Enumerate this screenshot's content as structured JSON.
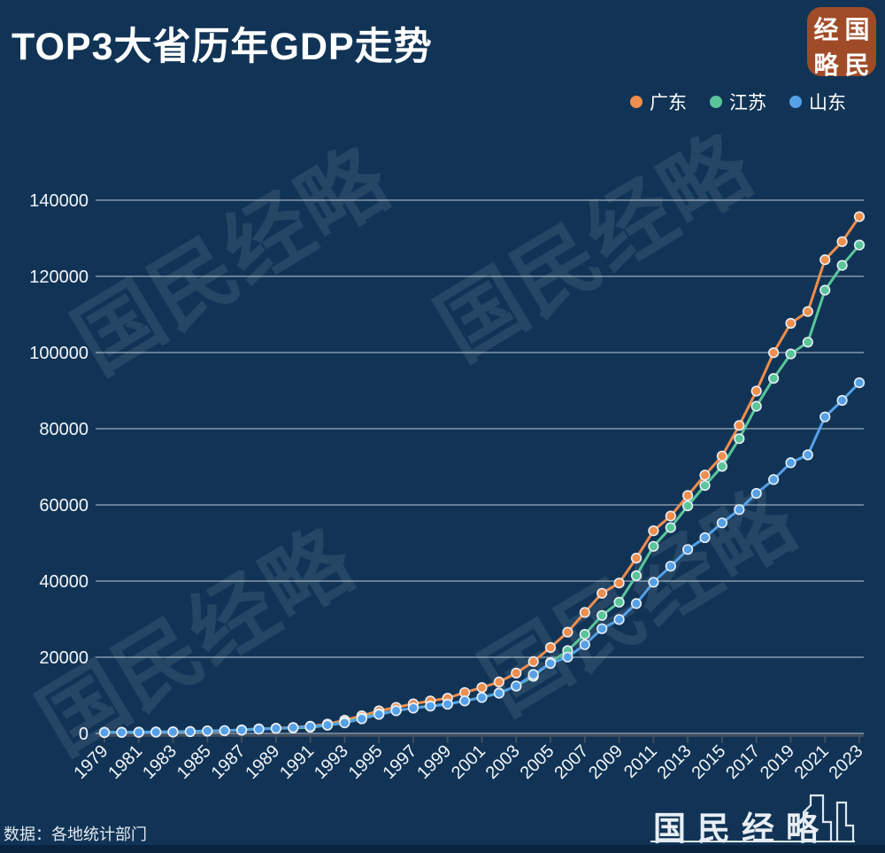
{
  "title": "TOP3大省历年GDP走势",
  "logo_badge": {
    "char_tl": "经",
    "char_tr": "国",
    "char_bl": "略",
    "char_br": "民",
    "background_color": "#a04b27"
  },
  "watermark": {
    "text": "国民经略"
  },
  "footer": {
    "source": "数据：各地统计部门",
    "brand": "国民经略"
  },
  "colors": {
    "background": "#113456",
    "gridline": "rgba(230,237,243,0.65)",
    "axis": "#49505a",
    "text": "#f2f5f8"
  },
  "chart_data": {
    "type": "line",
    "title": "TOP3大省历年GDP走势",
    "xlabel": "",
    "ylabel": "",
    "ylim": [
      0,
      140000
    ],
    "ytick_step": 20000,
    "ytick_labels": [
      "0",
      "20000",
      "40000",
      "60000",
      "80000",
      "100000",
      "120000",
      "140000"
    ],
    "xtick_labels": [
      "1979",
      "1981",
      "1983",
      "1985",
      "1987",
      "1989",
      "1991",
      "1993",
      "1995",
      "1997",
      "1999",
      "2001",
      "2003",
      "2005",
      "2007",
      "2009",
      "2011",
      "2013",
      "2015",
      "2017",
      "2019",
      "2021",
      "2023"
    ],
    "grid": true,
    "legend_position": "top-right",
    "x": [
      1979,
      1980,
      1981,
      1982,
      1983,
      1984,
      1985,
      1986,
      1987,
      1988,
      1989,
      1990,
      1991,
      1992,
      1993,
      1994,
      1995,
      1996,
      1997,
      1998,
      1999,
      2000,
      2001,
      2002,
      2003,
      2004,
      2005,
      2006,
      2007,
      2008,
      2009,
      2010,
      2011,
      2012,
      2013,
      2014,
      2015,
      2016,
      2017,
      2018,
      2019,
      2020,
      2021,
      2022,
      2023
    ],
    "series": [
      {
        "name": "广东",
        "color": "#f08e4d",
        "values": [
          209,
          250,
          290,
          340,
          369,
          459,
          577,
          668,
          847,
          1155,
          1381,
          1559,
          1893,
          2448,
          3469,
          4619,
          5933,
          6835,
          7775,
          8531,
          9251,
          10741,
          12039,
          13502,
          15845,
          18865,
          22557,
          26588,
          31777,
          36797,
          39483,
          46013,
          53210,
          57068,
          62475,
          67810,
          72813,
          80855,
          89879,
          99945,
          107671,
          110761,
          124370,
          129119,
          135673
        ]
      },
      {
        "name": "江苏",
        "color": "#59c69a",
        "values": [
          298,
          320,
          351,
          390,
          438,
          519,
          652,
          745,
          922,
          1209,
          1322,
          1417,
          1601,
          2136,
          2998,
          4057,
          5155,
          6004,
          6680,
          7200,
          7698,
          8554,
          9457,
          10607,
          12443,
          15004,
          18599,
          21742,
          26019,
          30982,
          34457,
          41425,
          49110,
          54058,
          59753,
          65088,
          70116,
          77388,
          85901,
          93207,
          99632,
          102719,
          116364,
          122876,
          128222
        ]
      },
      {
        "name": "山东",
        "color": "#55a1e8",
        "values": [
          258,
          292,
          313,
          358,
          406,
          497,
          680,
          743,
          892,
          1118,
          1294,
          1511,
          1811,
          2196,
          2770,
          3845,
          5002,
          5960,
          6650,
          7162,
          7662,
          8542,
          9438,
          10552,
          12436,
          15491,
          18367,
          20050,
          23300,
          27500,
          29900,
          34100,
          39700,
          43900,
          48300,
          51400,
          55289,
          58762,
          63012,
          66649,
          71068,
          73129,
          83096,
          87435,
          92069
        ]
      }
    ]
  }
}
